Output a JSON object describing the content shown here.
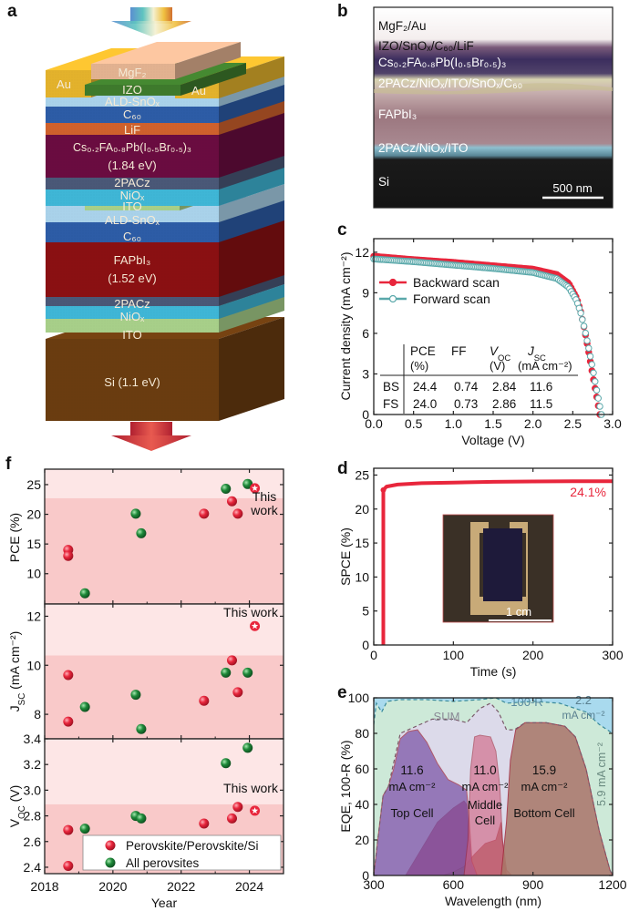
{
  "panel_labels": {
    "a": "a",
    "b": "b",
    "c": "c",
    "d": "d",
    "e": "e",
    "f": "f"
  },
  "panel_a": {
    "au_label": "Au",
    "au_color": "#e3b22c",
    "layers": [
      {
        "label": "MgF₂",
        "color": "#e2b290"
      },
      {
        "label": "IZO",
        "color": "#3e7a2c"
      },
      {
        "label": "ALD-SnOₓ",
        "color": "#a9d2ea"
      },
      {
        "label": "C₆₀",
        "color": "#2d5ca6"
      },
      {
        "label": "LiF",
        "color": "#cf612c"
      },
      {
        "label": "Cs₀.₂FA₀.₈Pb(I₀.₅Br₀.₅)₃",
        "sublabel": "(1.84 eV)",
        "color": "#6a0c40"
      },
      {
        "label": "2PACz",
        "color": "#4a5877"
      },
      {
        "label": "NiOₓ",
        "color": "#3fb6d6"
      },
      {
        "label": "ITO",
        "color": "#a7cf89"
      },
      {
        "label": "ALD-SnOₓ",
        "color": "#a9d2ea"
      },
      {
        "label": "C₆₀",
        "color": "#2d5ca6"
      },
      {
        "label": "FAPbI₃",
        "sublabel": "(1.52 eV)",
        "color": "#8a1012"
      },
      {
        "label": "2PACz",
        "color": "#4a5877"
      },
      {
        "label": "NiOₓ",
        "color": "#3fb6d6"
      },
      {
        "label": "ITO",
        "color": "#a7cf89"
      },
      {
        "label": "Si (1.1 eV)",
        "color": "#6a3c10"
      }
    ]
  },
  "panel_b": {
    "labels": [
      "MgF₂/Au",
      "IZO/SnOₓ/C₆₀/LiF",
      "Cs₀.₂FA₀.₈Pb(I₀.₅Br₀.₅)₃",
      "2PACz/NiOₓ/ITO/SnOₓ/C₆₀",
      "FAPbI₃",
      "2PACz/NiOₓ/ITO",
      "Si"
    ],
    "scale_bar": "500 nm"
  },
  "chart_data": [
    {
      "type": "line",
      "xlabel": "Voltage (V)",
      "ylabel": "Current density (mA cm⁻²)",
      "xlim": [
        0,
        3
      ],
      "ylim": [
        0,
        13
      ],
      "x_ticks": [
        0,
        0.5,
        1,
        1.5,
        2,
        2.5,
        3
      ],
      "x_tick_labels": [
        "0.0",
        "0.5",
        "1.0",
        "1.5",
        "2.0",
        "2.5",
        "3.0"
      ],
      "y_ticks": [
        0,
        3,
        6,
        9,
        12
      ],
      "y_tick_labels": [
        "0",
        "3",
        "6",
        "9",
        "12"
      ],
      "legend_placement": "upper-left",
      "series": [
        {
          "name": "Backward scan",
          "color": "#e8263c",
          "marker": "filled-circle",
          "points": [
            [
              0,
              11.7
            ],
            [
              0.5,
              11.45
            ],
            [
              1.0,
              11.25
            ],
            [
              1.5,
              11.0
            ],
            [
              2.0,
              10.75
            ],
            [
              2.3,
              10.35
            ],
            [
              2.45,
              9.7
            ],
            [
              2.55,
              8.6
            ],
            [
              2.6,
              7.6
            ],
            [
              2.65,
              6.2
            ],
            [
              2.7,
              4.6
            ],
            [
              2.75,
              2.9
            ],
            [
              2.8,
              1.3
            ],
            [
              2.84,
              0
            ]
          ]
        },
        {
          "name": "Forward scan",
          "color": "#5aa8aa",
          "marker": "open-circle",
          "points": [
            [
              0,
              11.5
            ],
            [
              0.5,
              11.3
            ],
            [
              1.0,
              11.05
            ],
            [
              1.5,
              10.8
            ],
            [
              2.0,
              10.5
            ],
            [
              2.3,
              10.05
            ],
            [
              2.45,
              9.4
            ],
            [
              2.55,
              8.4
            ],
            [
              2.6,
              7.5
            ],
            [
              2.65,
              6.3
            ],
            [
              2.7,
              4.9
            ],
            [
              2.75,
              3.4
            ],
            [
              2.8,
              1.8
            ],
            [
              2.86,
              0
            ]
          ]
        }
      ],
      "table": {
        "headers": [
          "PCE",
          "FF",
          "V",
          "J"
        ],
        "header_subs": [
          "",
          "",
          "OC",
          "SC"
        ],
        "units": [
          "(%)",
          "",
          "(V)",
          "(mA cm⁻²)"
        ],
        "rows": [
          {
            "label": "BS",
            "values": [
              "24.4",
              "0.74",
              "2.84",
              "11.6"
            ]
          },
          {
            "label": "FS",
            "values": [
              "24.0",
              "0.73",
              "2.86",
              "11.5"
            ]
          }
        ]
      }
    },
    {
      "type": "line",
      "xlabel": "Time (s)",
      "ylabel": "SPCE (%)",
      "xlim": [
        0,
        300
      ],
      "ylim": [
        0,
        26
      ],
      "x_ticks": [
        0,
        100,
        200,
        300
      ],
      "x_tick_labels": [
        "0",
        "100",
        "200",
        "300"
      ],
      "y_ticks": [
        0,
        5,
        10,
        15,
        20,
        25
      ],
      "y_tick_labels": [
        "0",
        "5",
        "10",
        "15",
        "20",
        "25"
      ],
      "color": "#e8263c",
      "points": [
        [
          12,
          0
        ],
        [
          12,
          22.8
        ],
        [
          16,
          23.3
        ],
        [
          30,
          23.6
        ],
        [
          60,
          23.8
        ],
        [
          100,
          23.9
        ],
        [
          150,
          24.0
        ],
        [
          200,
          24.05
        ],
        [
          250,
          24.1
        ],
        [
          300,
          24.1
        ]
      ],
      "annotation": "24.1%",
      "inset_scale_bar": "1 cm"
    },
    {
      "type": "area",
      "xlabel": "Wavelength (nm)",
      "ylabel": "EQE, 100-R (%)",
      "xlim": [
        300,
        1200
      ],
      "ylim": [
        0,
        100
      ],
      "x_ticks": [
        300,
        600,
        900,
        1200
      ],
      "x_tick_labels": [
        "300",
        "600",
        "900",
        "1200"
      ],
      "y_ticks": [
        0,
        20,
        40,
        60,
        80,
        100
      ],
      "y_tick_labels": [
        "0",
        "20",
        "40",
        "60",
        "80",
        "100"
      ],
      "unit": "mA cm⁻²",
      "series": [
        {
          "name": "Top Cell",
          "jsc": "11.6",
          "color": "#7a53a6",
          "points": [
            [
              300,
              0
            ],
            [
              315,
              20
            ],
            [
              335,
              45
            ],
            [
              355,
              50
            ],
            [
              375,
              60
            ],
            [
              400,
              77
            ],
            [
              430,
              81
            ],
            [
              465,
              82
            ],
            [
              500,
              75
            ],
            [
              540,
              63
            ],
            [
              580,
              54
            ],
            [
              620,
              51
            ],
            [
              650,
              48
            ],
            [
              660,
              30
            ],
            [
              670,
              8
            ],
            [
              690,
              0
            ]
          ]
        },
        {
          "name": "Middle Cell",
          "name_lines": [
            "Middle",
            "Cell"
          ],
          "jsc": "11.0",
          "color": "#d2607e",
          "points": [
            [
              640,
              0
            ],
            [
              655,
              20
            ],
            [
              665,
              60
            ],
            [
              680,
              78
            ],
            [
              700,
              79
            ],
            [
              740,
              78
            ],
            [
              760,
              70
            ],
            [
              775,
              50
            ],
            [
              785,
              20
            ],
            [
              800,
              3
            ],
            [
              820,
              0
            ]
          ]
        },
        {
          "name": "Bottom Cell",
          "jsc": "15.9",
          "color": "#a87767",
          "points": [
            [
              780,
              0
            ],
            [
              800,
              30
            ],
            [
              815,
              65
            ],
            [
              835,
              82
            ],
            [
              870,
              86
            ],
            [
              950,
              86
            ],
            [
              1020,
              84
            ],
            [
              1060,
              78
            ],
            [
              1100,
              60
            ],
            [
              1150,
              25
            ],
            [
              1190,
              3
            ],
            [
              1200,
              0
            ]
          ]
        }
      ],
      "extra_areas": [
        {
          "color": "#b23a62",
          "points": [
            [
              420,
              0
            ],
            [
              480,
              15
            ],
            [
              540,
              30
            ],
            [
              600,
              38
            ],
            [
              640,
              42
            ],
            [
              650,
              40
            ],
            [
              660,
              20
            ],
            [
              670,
              5
            ],
            [
              690,
              0
            ]
          ]
        },
        {
          "color": "#a0584e",
          "points": [
            [
              560,
              0
            ],
            [
              600,
              2
            ],
            [
              640,
              5
            ],
            [
              680,
              12
            ],
            [
              720,
              18
            ],
            [
              760,
              20
            ],
            [
              780,
              30
            ],
            [
              790,
              10
            ],
            [
              800,
              0
            ]
          ]
        }
      ],
      "sum": {
        "label": "SUM",
        "points": [
          [
            300,
            0
          ],
          [
            315,
            20
          ],
          [
            335,
            45
          ],
          [
            355,
            50
          ],
          [
            400,
            80
          ],
          [
            460,
            84
          ],
          [
            520,
            88
          ],
          [
            600,
            88
          ],
          [
            650,
            86
          ],
          [
            700,
            94
          ],
          [
            740,
            97
          ],
          [
            770,
            92
          ],
          [
            800,
            82
          ],
          [
            830,
            82
          ],
          [
            870,
            86
          ],
          [
            950,
            86
          ],
          [
            1020,
            84
          ],
          [
            1060,
            78
          ],
          [
            1100,
            60
          ],
          [
            1150,
            25
          ],
          [
            1190,
            3
          ],
          [
            1200,
            0
          ]
        ]
      },
      "reflection": {
        "label": "100-R",
        "points": [
          [
            300,
            85
          ],
          [
            310,
            97
          ],
          [
            330,
            92
          ],
          [
            350,
            98
          ],
          [
            400,
            99
          ],
          [
            500,
            99
          ],
          [
            600,
            98
          ],
          [
            700,
            99
          ],
          [
            760,
            100
          ],
          [
            800,
            97
          ],
          [
            900,
            98
          ],
          [
            1000,
            97
          ],
          [
            1100,
            92
          ],
          [
            1150,
            85
          ],
          [
            1200,
            80
          ]
        ]
      },
      "loss_labels": [
        {
          "value": "2.2",
          "unit": "mA cm⁻²"
        },
        {
          "value": "5.9 mA cm⁻²"
        }
      ]
    },
    {
      "type": "scatter",
      "xlabel": "Year",
      "xlim": [
        2018,
        2025
      ],
      "x_ticks": [
        2018,
        2020,
        2022,
        2024
      ],
      "x_tick_labels": [
        "2018",
        "2020",
        "2022",
        "2024"
      ],
      "legend": [
        {
          "name": "Perovskite/Perovskite/Si",
          "color": "#e8263c"
        },
        {
          "name": "All perovsites",
          "color": "#1f8a3a"
        }
      ],
      "legend_placement": "bottom-right",
      "this_work_color": "#e8263c",
      "subplots": [
        {
          "ylabel": "PCE",
          "ylabel_sub": "",
          "ylabel_unit": " (%)",
          "ylim": [
            4.9,
            27.6
          ],
          "band_split": 22.7,
          "y_ticks": [
            10,
            15,
            20,
            25
          ],
          "y_tick_labels": [
            "10",
            "15",
            "20",
            "25"
          ],
          "this_work_text": [
            "This",
            "work"
          ],
          "red": [
            [
              2018.69,
              14.0
            ],
            [
              2018.69,
              13.0
            ],
            [
              2022.67,
              20.1
            ],
            [
              2023.49,
              22.2
            ],
            [
              2023.66,
              20.1
            ]
          ],
          "green": [
            [
              2019.18,
              6.7
            ],
            [
              2020.67,
              20.1
            ],
            [
              2020.83,
              16.8
            ],
            [
              2023.31,
              24.3
            ],
            [
              2023.95,
              25.1
            ]
          ],
          "this_work": [
            2024.16,
            24.4
          ]
        },
        {
          "ylabel": "J",
          "ylabel_sub": "SC",
          "ylabel_unit": " (mA cm⁻²)",
          "ylim": [
            7.0,
            12.5
          ],
          "band_split": 10.4,
          "y_ticks": [
            8,
            10,
            12
          ],
          "y_tick_labels": [
            "8",
            "10",
            "12"
          ],
          "this_work_text": [
            "This work"
          ],
          "red": [
            [
              2018.69,
              9.6
            ],
            [
              2018.69,
              7.7
            ],
            [
              2022.67,
              8.55
            ],
            [
              2023.49,
              10.2
            ],
            [
              2023.66,
              8.9
            ]
          ],
          "green": [
            [
              2019.18,
              8.3
            ],
            [
              2020.67,
              8.8
            ],
            [
              2020.83,
              7.4
            ],
            [
              2023.31,
              9.7
            ],
            [
              2023.95,
              9.7
            ]
          ],
          "this_work": [
            2024.16,
            11.6
          ]
        },
        {
          "ylabel": "V",
          "ylabel_sub": "OC",
          "ylabel_unit": " (V)",
          "ylim": [
            2.35,
            3.4
          ],
          "band_split": 2.89,
          "y_ticks": [
            2.4,
            2.6,
            2.8,
            3.0,
            3.2,
            3.4
          ],
          "y_tick_labels": [
            "2.4",
            "2.6",
            "2.8",
            "3.0",
            "3.2",
            "3.4"
          ],
          "this_work_text": [
            "This work"
          ],
          "red": [
            [
              2018.69,
              2.69
            ],
            [
              2018.69,
              2.41
            ],
            [
              2022.67,
              2.74
            ],
            [
              2023.49,
              2.78
            ],
            [
              2023.66,
              2.87
            ]
          ],
          "green": [
            [
              2019.18,
              2.7
            ],
            [
              2020.67,
              2.8
            ],
            [
              2020.83,
              2.78
            ],
            [
              2023.31,
              3.21
            ],
            [
              2023.95,
              3.33
            ]
          ],
          "this_work": [
            2024.16,
            2.84
          ]
        }
      ]
    }
  ]
}
